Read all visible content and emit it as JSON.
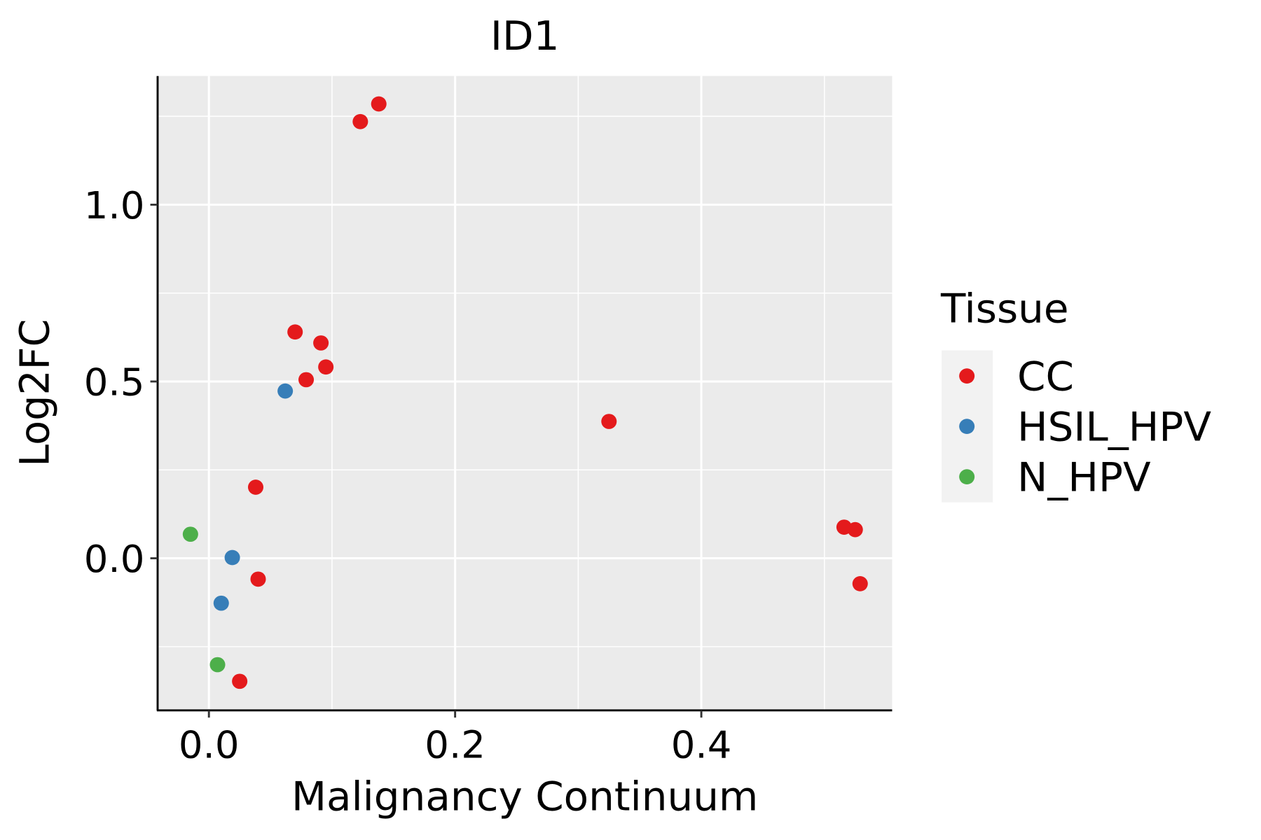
{
  "chart_data": {
    "type": "scatter",
    "title": "ID1",
    "xlabel": "Malignancy Continuum",
    "ylabel": "Log2FC",
    "xlim": [
      -0.041,
      0.555
    ],
    "ylim": [
      -0.428,
      1.364
    ],
    "xticks": [
      0.0,
      0.2,
      0.4
    ],
    "xtick_labels": [
      "0.0",
      "0.2",
      "0.4"
    ],
    "xminor": [
      0.1,
      0.3,
      0.5
    ],
    "yticks": [
      0.0,
      0.5,
      1.0
    ],
    "ytick_labels": [
      "0.0",
      "0.5",
      "1.0"
    ],
    "yminor": [
      -0.25,
      0.25,
      0.75,
      1.25
    ],
    "grid": true,
    "legend": {
      "title": "Tissue",
      "placement": "right"
    },
    "series": [
      {
        "name": "CC",
        "color": "#E41A1C",
        "points": [
          [
            0.138,
            1.285
          ],
          [
            0.123,
            1.235
          ],
          [
            0.07,
            0.64
          ],
          [
            0.091,
            0.609
          ],
          [
            0.095,
            0.541
          ],
          [
            0.079,
            0.505
          ],
          [
            0.325,
            0.387
          ],
          [
            0.038,
            0.201
          ],
          [
            0.04,
            -0.059
          ],
          [
            0.025,
            -0.348
          ],
          [
            0.516,
            0.088
          ],
          [
            0.525,
            0.081
          ],
          [
            0.529,
            -0.072
          ]
        ]
      },
      {
        "name": "HSIL_HPV",
        "color": "#377EB8",
        "points": [
          [
            0.062,
            0.473
          ],
          [
            0.019,
            0.002
          ],
          [
            0.01,
            -0.127
          ]
        ]
      },
      {
        "name": "N_HPV",
        "color": "#4DAF4A",
        "points": [
          [
            -0.015,
            0.068
          ],
          [
            0.007,
            -0.301
          ]
        ]
      }
    ]
  }
}
